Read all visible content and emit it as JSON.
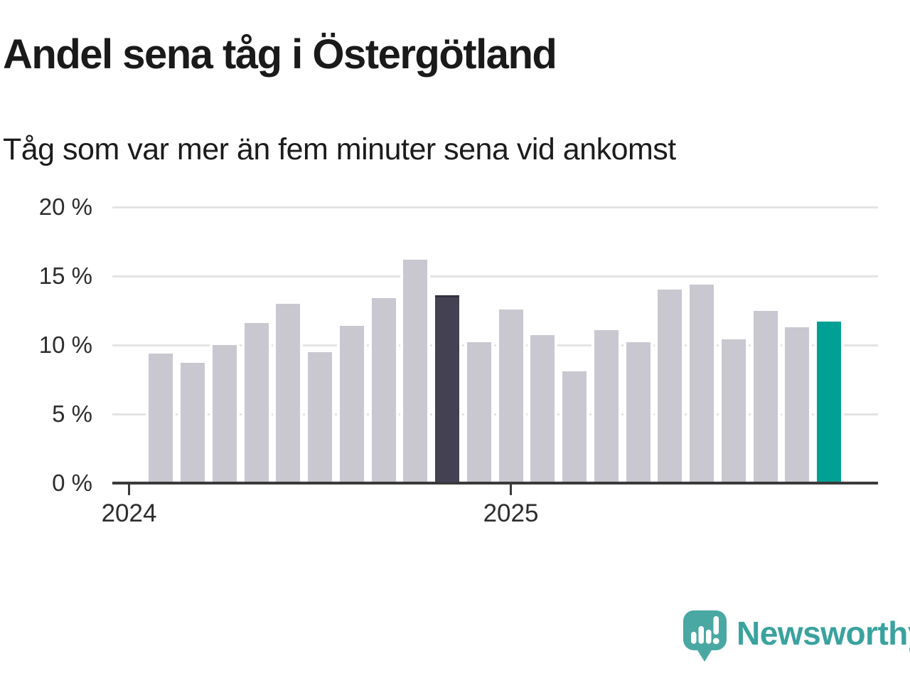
{
  "chart_data": {
    "type": "bar",
    "title": "Andel sena tåg i Östergötland",
    "subtitle": "Tåg som var mer än fem minuter sena vid ankomst",
    "unit": "%",
    "categories": [
      "2024-02",
      "2024-03",
      "2024-04",
      "2024-05",
      "2024-06",
      "2024-07",
      "2024-08",
      "2024-09",
      "2024-10",
      "2024-11",
      "2024-12",
      "2025-01",
      "2025-02",
      "2025-03",
      "2025-04",
      "2025-05",
      "2025-06",
      "2025-07",
      "2025-08",
      "2025-09",
      "2025-10",
      "2025-11"
    ],
    "values": [
      9.4,
      8.7,
      10,
      11.6,
      13,
      9.5,
      11.4,
      13.4,
      16.2,
      13.6,
      10.2,
      12.6,
      10.7,
      8.1,
      11.1,
      10.2,
      14,
      14.4,
      10.4,
      12.5,
      11.3,
      11.7
    ],
    "ylim": [
      0,
      20
    ],
    "yticks": [
      {
        "value": 0,
        "label": "0 %"
      },
      {
        "value": 5,
        "label": "5 %"
      },
      {
        "value": 10,
        "label": "10 %"
      },
      {
        "value": 15,
        "label": "15 %"
      },
      {
        "value": 20,
        "label": "20 %"
      }
    ],
    "xticks": [
      {
        "label": "2024",
        "at": "2024-01"
      },
      {
        "label": "2025",
        "at": "2025-01"
      }
    ],
    "grid": "on",
    "legend": "none",
    "highlight": {
      "previous_year": "2024-11",
      "latest": "2025-11"
    }
  },
  "colors": {
    "bar_default": "#c9c7d0",
    "bar_previous_year": "#444153",
    "bar_previous_year_border": "#34323e",
    "bar_latest": "#00a094",
    "grid": "#e4e4e4",
    "axis": "#3a3a3a",
    "title_text": "#1a1a1a",
    "axis_text": "#2d2d2d",
    "brand_teal": "#4aa8a3",
    "brand_text": "#3aa29e"
  },
  "footer": {
    "brand": "Newsworthy"
  }
}
